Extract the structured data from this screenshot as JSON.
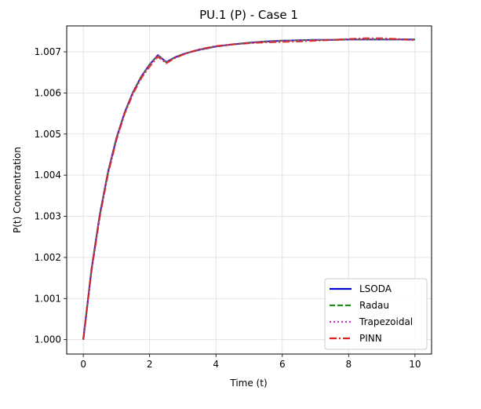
{
  "chart_data": {
    "type": "line",
    "title": "PU.1 (P) - Case 1",
    "xlabel": "Time (t)",
    "ylabel": "P(t) Concentration",
    "xlim": [
      -0.5,
      10.5
    ],
    "ylim": [
      0.99965,
      1.00763
    ],
    "xticks": [
      0,
      2,
      4,
      6,
      8,
      10
    ],
    "yticks": [
      1.0,
      1.001,
      1.002,
      1.003,
      1.004,
      1.005,
      1.006,
      1.007
    ],
    "xtick_labels": [
      "0",
      "2",
      "4",
      "6",
      "8",
      "10"
    ],
    "ytick_labels": [
      "1.000",
      "1.001",
      "1.002",
      "1.003",
      "1.004",
      "1.005",
      "1.006",
      "1.007"
    ],
    "grid": true,
    "legend_position": "lower-right",
    "x": [
      0,
      0.25,
      0.5,
      0.75,
      1,
      1.25,
      1.5,
      1.75,
      2,
      2.25,
      2.5,
      2.75,
      3,
      3.25,
      3.5,
      3.75,
      4,
      4.5,
      5,
      5.5,
      6,
      6.5,
      7,
      7.5,
      8,
      8.5,
      9,
      9.5,
      10
    ],
    "series": [
      {
        "name": "LSODA",
        "color": "#0000cc",
        "dash": "solid",
        "values": [
          1.0,
          1.00172,
          1.00305,
          1.00409,
          1.0049,
          1.00553,
          1.00602,
          1.0064,
          1.00669,
          1.00692,
          1.00675,
          1.00686,
          1.00694,
          1.007,
          1.00705,
          1.00709,
          1.00713,
          1.00718,
          1.00722,
          1.00725,
          1.00727,
          1.00728,
          1.00729,
          1.00729,
          1.0073,
          1.0073,
          1.0073,
          1.0073,
          1.0073
        ]
      },
      {
        "name": "Radau",
        "color": "#228B22",
        "dash": "dashed",
        "values": [
          1.0,
          1.00172,
          1.00305,
          1.00409,
          1.0049,
          1.00553,
          1.00602,
          1.0064,
          1.00669,
          1.00692,
          1.00675,
          1.00686,
          1.00694,
          1.007,
          1.00705,
          1.00709,
          1.00713,
          1.00718,
          1.00722,
          1.00725,
          1.00727,
          1.00728,
          1.00729,
          1.00729,
          1.0073,
          1.0073,
          1.0073,
          1.0073,
          1.0073
        ]
      },
      {
        "name": "Trapezoidal",
        "color": "#cc33cc",
        "dash": "dotted",
        "values": [
          1.0,
          1.00172,
          1.00305,
          1.00409,
          1.0049,
          1.00553,
          1.00602,
          1.0064,
          1.00669,
          1.00692,
          1.00675,
          1.00686,
          1.00694,
          1.007,
          1.00705,
          1.00709,
          1.00713,
          1.00718,
          1.00722,
          1.00725,
          1.00727,
          1.00728,
          1.00729,
          1.00729,
          1.0073,
          1.0073,
          1.0073,
          1.0073,
          1.0073
        ]
      },
      {
        "name": "PINN",
        "color": "#dd2222",
        "dash": "dashdot",
        "values": [
          1.0,
          1.00168,
          1.003,
          1.00404,
          1.00486,
          1.0055,
          1.00598,
          1.00636,
          1.00664,
          1.00688,
          1.00672,
          1.00684,
          1.00693,
          1.007,
          1.00706,
          1.0071,
          1.00714,
          1.00718,
          1.00721,
          1.00723,
          1.00724,
          1.00725,
          1.00727,
          1.00729,
          1.00731,
          1.00733,
          1.00733,
          1.00731,
          1.00728
        ]
      }
    ]
  }
}
